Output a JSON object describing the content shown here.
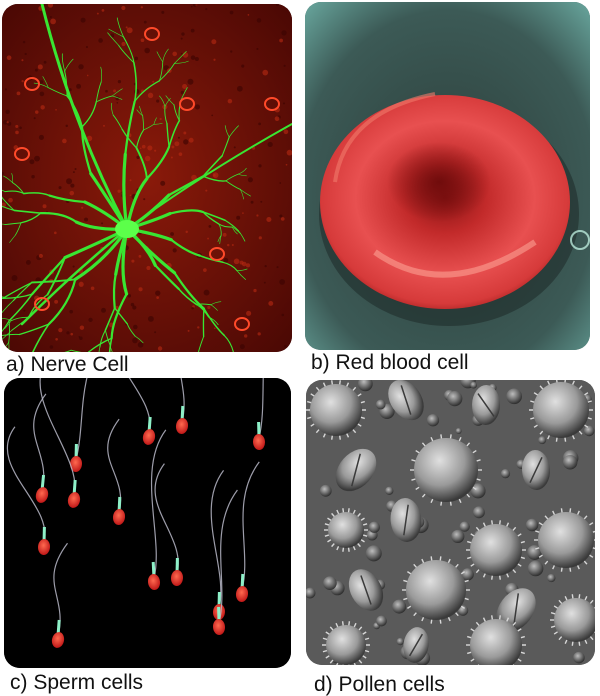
{
  "panels": [
    {
      "caption": "a) Nerve Cell",
      "subject": "nerve-cell"
    },
    {
      "caption": "b) Red blood cell",
      "subject": "red-blood-cell"
    },
    {
      "caption": "c) Sperm cells",
      "subject": "sperm-cells"
    },
    {
      "caption": "d) Pollen cells",
      "subject": "pollen-cells"
    }
  ],
  "colors": {
    "neuron_green": "#39e632",
    "tissue_red": "#7a1208",
    "rbc_red": "#d93838",
    "rbc_background": "#3c5a56",
    "sperm_head": "#e8322e",
    "sperm_neck": "#8ef0c8",
    "pollen_gray": "#9a9a9a"
  }
}
